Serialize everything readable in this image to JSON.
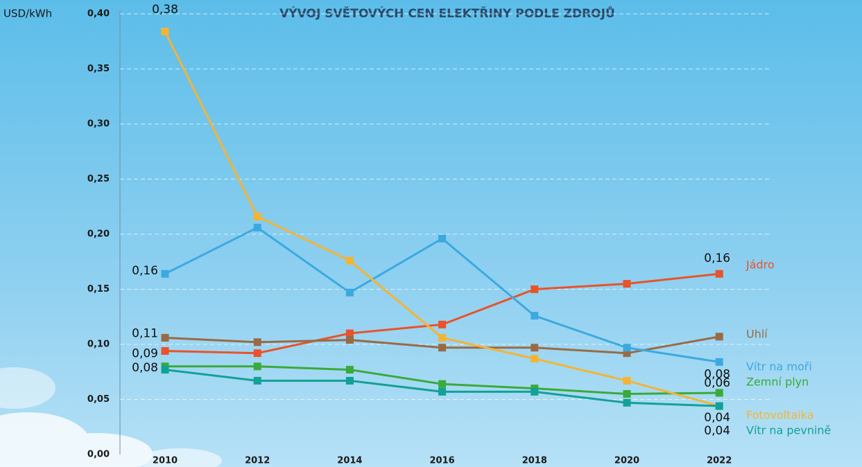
{
  "chart_data": {
    "type": "line",
    "title": "VÝVOJ SVĚTOVÝCH CEN ELEKTŘINY PODLE ZDROJŮ",
    "y_label": "USD/kWh",
    "categories": [
      "2010",
      "2012",
      "2014",
      "2016",
      "2018",
      "2020",
      "2022"
    ],
    "ylim": [
      0,
      0.4
    ],
    "yticks": [
      {
        "value": 0,
        "label": "0,00"
      },
      {
        "value": 0.05,
        "label": "0,05"
      },
      {
        "value": 0.1,
        "label": "0,10"
      },
      {
        "value": 0.15,
        "label": "0,15"
      },
      {
        "value": 0.2,
        "label": "0,20"
      },
      {
        "value": 0.25,
        "label": "0,25"
      },
      {
        "value": 0.3,
        "label": "0,30"
      },
      {
        "value": 0.35,
        "label": "0,35"
      },
      {
        "value": 0.4,
        "label": "0,40"
      }
    ],
    "grid": true,
    "series": [
      {
        "name": "Jádro",
        "color": "#e8532b",
        "values": [
          0.094,
          0.092,
          0.11,
          0.118,
          0.15,
          0.155,
          0.164
        ],
        "value_labels": [
          "0,09",
          null,
          null,
          null,
          null,
          null,
          "0,16"
        ]
      },
      {
        "name": "Uhlí",
        "color": "#9a6a45",
        "values": [
          0.106,
          0.102,
          0.104,
          0.097,
          0.097,
          0.092,
          0.107
        ],
        "value_labels": [
          "0,11",
          null,
          null,
          null,
          null,
          null,
          null
        ]
      },
      {
        "name": "Vítr na moři",
        "color": "#3ba9e0",
        "values": [
          0.164,
          0.206,
          0.147,
          0.196,
          0.126,
          0.097,
          0.084
        ],
        "value_labels": [
          "0,16",
          null,
          null,
          null,
          null,
          null,
          "0,08"
        ]
      },
      {
        "name": "Zemní plyn",
        "color": "#3aaa3a",
        "values": [
          0.08,
          0.08,
          0.077,
          0.064,
          0.06,
          0.055,
          0.056
        ],
        "value_labels": [
          "0,08",
          null,
          null,
          null,
          null,
          null,
          "0,06"
        ]
      },
      {
        "name": "Fotovoltaika",
        "color": "#f5b335",
        "values": [
          0.384,
          0.216,
          0.176,
          0.106,
          0.087,
          0.067,
          0.044
        ],
        "value_labels": [
          "0,38",
          null,
          null,
          null,
          null,
          null,
          "0,04"
        ]
      },
      {
        "name": "Vítr na pevnině",
        "color": "#12a197",
        "values": [
          0.077,
          0.067,
          0.067,
          0.057,
          0.057,
          0.047,
          0.044
        ],
        "value_labels": [
          null,
          null,
          null,
          null,
          null,
          null,
          "0,04"
        ]
      }
    ]
  }
}
